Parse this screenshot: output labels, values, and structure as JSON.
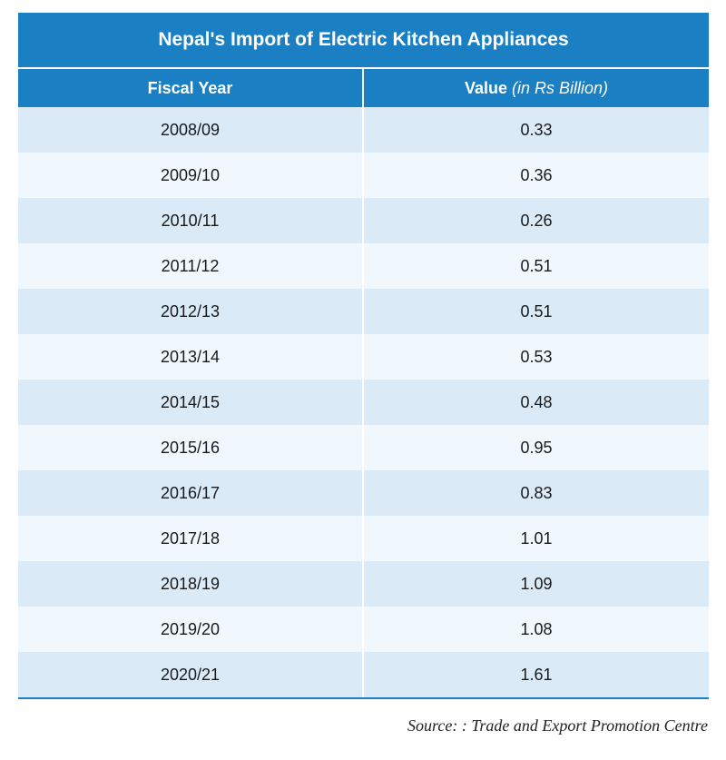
{
  "chart_data": {
    "type": "table",
    "title": "Nepal's Import of Electric Kitchen Appliances",
    "columns": [
      {
        "label": "Fiscal Year",
        "unit": ""
      },
      {
        "label": "Value",
        "unit": "(in Rs Billion)"
      }
    ],
    "rows": [
      {
        "year": "2008/09",
        "value": "0.33"
      },
      {
        "year": "2009/10",
        "value": "0.36"
      },
      {
        "year": "2010/11",
        "value": "0.26"
      },
      {
        "year": "2011/12",
        "value": "0.51"
      },
      {
        "year": "2012/13",
        "value": "0.51"
      },
      {
        "year": "2013/14",
        "value": "0.53"
      },
      {
        "year": "2014/15",
        "value": "0.48"
      },
      {
        "year": "2015/16",
        "value": "0.95"
      },
      {
        "year": "2016/17",
        "value": "0.83"
      },
      {
        "year": "2017/18",
        "value": "1.01"
      },
      {
        "year": "2018/19",
        "value": "1.09"
      },
      {
        "year": "2019/20",
        "value": "1.08"
      },
      {
        "year": "2020/21",
        "value": "1.61"
      }
    ],
    "source": "Source: : Trade and Export Promotion Centre"
  },
  "colors": {
    "header": "#1a7fc3",
    "row_dark": "#daeaf7",
    "row_light": "#f1f8fd"
  }
}
